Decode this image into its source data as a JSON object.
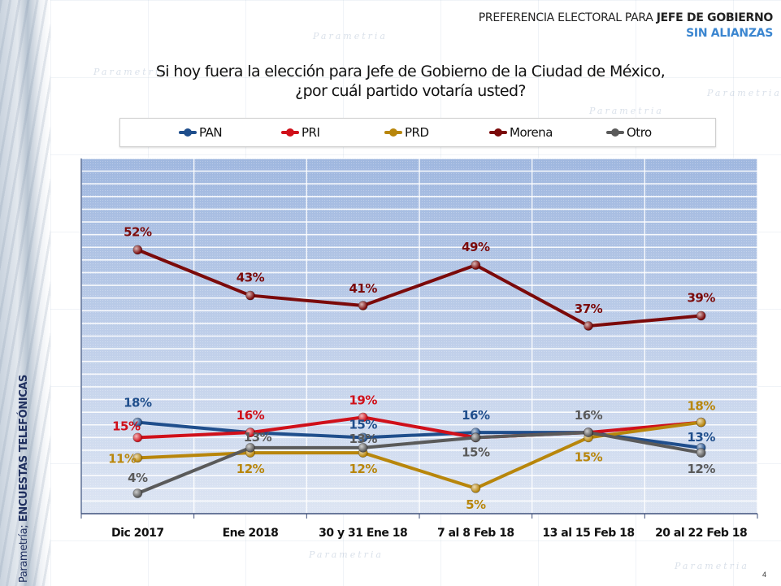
{
  "header": {
    "title_prefix": "PREFERENCIA ELECTORAL PARA ",
    "title_bold": "JEFE DE GOBIERNO",
    "subtitle": "SIN ALIANZAS"
  },
  "question": {
    "line1": "Si hoy fuera la elección para Jefe de Gobierno de la Ciudad de México,",
    "line2": "¿por cuál partido votaría usted?"
  },
  "side_label": {
    "prefix": "Parametría; ",
    "bold": "ENCUESTAS TELEFÓNICAS"
  },
  "watermark_text": "Parametria",
  "page_number": "4",
  "colors": {
    "PAN": "#1f4e8c",
    "PRI": "#d0101a",
    "PRD": "#b8860b",
    "Morena": "#7b0a0a",
    "Otro": "#5a5a5a",
    "plot_top": "#9fb7df",
    "plot_bottom": "#dde5f3"
  },
  "chart_data": {
    "type": "line",
    "title": "Si hoy fuera la elección para Jefe de Gobierno de la Ciudad de México, ¿por cuál partido votaría usted?",
    "xlabel": "",
    "ylabel": "",
    "ylim": [
      0,
      70
    ],
    "grid": true,
    "legend_position": "top",
    "categories": [
      "Dic 2017",
      "Ene 2018",
      "30 y 31 Ene 18",
      "7 al 8 Feb 18",
      "13 al 15 Feb 18",
      "20 al 22 Feb 18"
    ],
    "series": [
      {
        "name": "PAN",
        "values": [
          18,
          16,
          15,
          16,
          16,
          13
        ],
        "labels": [
          "18%",
          "",
          "15%",
          "16%",
          "",
          "13%"
        ]
      },
      {
        "name": "PRI",
        "values": [
          15,
          16,
          19,
          15,
          16,
          18
        ],
        "labels": [
          "15%",
          "16%",
          "19%",
          "",
          "",
          ""
        ]
      },
      {
        "name": "PRD",
        "values": [
          11,
          12,
          12,
          5,
          15,
          18
        ],
        "labels": [
          "11%",
          "12%",
          "12%",
          "5%",
          "15%",
          "18%"
        ]
      },
      {
        "name": "Morena",
        "values": [
          52,
          43,
          41,
          49,
          37,
          39
        ],
        "labels": [
          "52%",
          "43%",
          "41%",
          "49%",
          "37%",
          "39%"
        ]
      },
      {
        "name": "Otro",
        "values": [
          4,
          13,
          13,
          15,
          16,
          12
        ],
        "labels": [
          "4%",
          "13%",
          "13%",
          "15%",
          "16%",
          "12%"
        ]
      }
    ]
  }
}
